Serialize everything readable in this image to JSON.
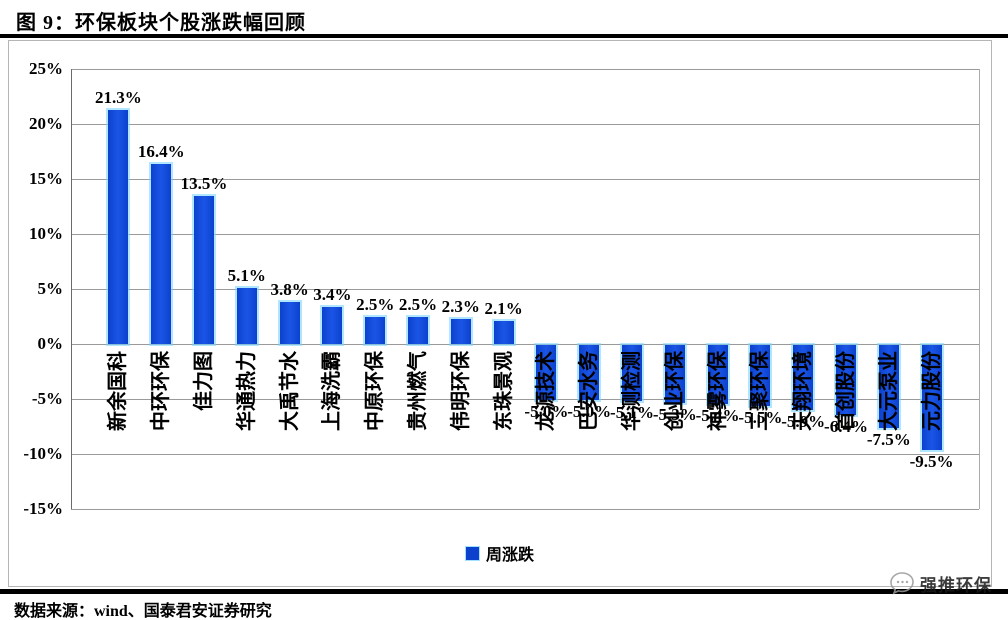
{
  "header": {
    "title": "图 9：环保板块个股涨跌幅回顾"
  },
  "footer": {
    "source": "数据来源：wind、国泰君安证券研究"
  },
  "watermark": {
    "label": "强推环保",
    "icon": "chat-bubble-logo"
  },
  "chart_data": {
    "type": "bar",
    "title": "图 9：环保板块个股涨跌幅回顾",
    "legend": [
      {
        "label": "周涨跌",
        "color": "#0c41cd"
      }
    ],
    "legend_position": "bottom",
    "categories": [
      "新余国科",
      "中环环保",
      "佳力图",
      "华通热力",
      "大禹节水",
      "上海洗霸",
      "中原环保",
      "贵州燃气",
      "伟明环保",
      "东珠景观",
      "龙源技术",
      "巴安水务",
      "华测检测",
      "创业环保",
      "神雾环保",
      "三聚环保",
      "天翔环境",
      "首创股份",
      "大元泵业",
      "元力股份"
    ],
    "values": [
      21.3,
      16.4,
      13.5,
      5.1,
      3.8,
      3.4,
      2.5,
      2.5,
      2.3,
      2.1,
      -5.0,
      -5.0,
      -5.1,
      -5.3,
      -5.4,
      -5.5,
      -5.9,
      -6.4,
      -7.5,
      -9.5
    ],
    "value_labels": [
      "21.3%",
      "16.4%",
      "13.5%",
      "5.1%",
      "3.8%",
      "3.4%",
      "2.5%",
      "2.5%",
      "2.3%",
      "2.1%",
      "-5.0%",
      "-5.0%",
      "-5.1%",
      "-5.3%",
      "-5.4%",
      "-5.5%",
      "-5.9%",
      "-6.4%",
      "-7.5%",
      "-9.5%"
    ],
    "ylabel": "",
    "xlabel": "",
    "ylim": [
      -15,
      25
    ],
    "yticks": [
      25,
      20,
      15,
      10,
      5,
      0,
      -5,
      -10,
      -15
    ],
    "ytick_labels": [
      "25%",
      "20%",
      "15%",
      "10%",
      "5%",
      "0%",
      "-5%",
      "-10%",
      "-15%"
    ],
    "grid": true,
    "bar_color": "#0c41cd",
    "bar_edge_color": "#7cd6ff"
  }
}
